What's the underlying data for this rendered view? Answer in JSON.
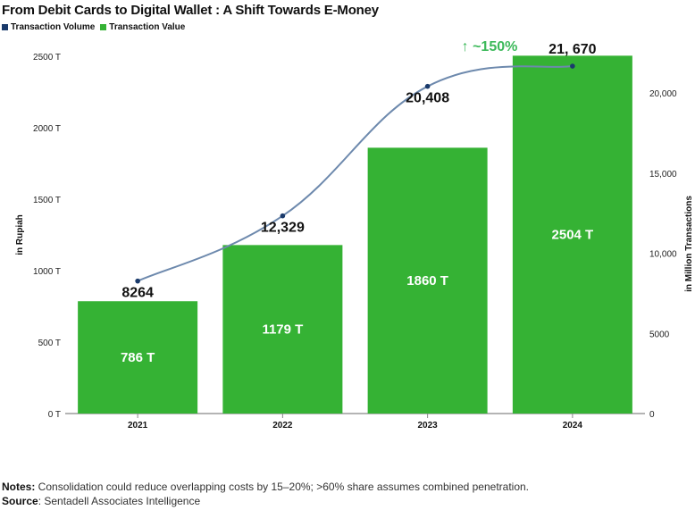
{
  "chart_data": {
    "type": "bar+line",
    "title": "From Debit Cards to Digital Wallet : A Shift Towards E-Money",
    "categories": [
      "2021",
      "2022",
      "2023",
      "2024"
    ],
    "series": [
      {
        "name": "Transaction Value",
        "type": "bar",
        "axis": "left",
        "color": "#35b234",
        "values": [
          786,
          1179,
          1860,
          2504
        ],
        "labels": [
          "786 T",
          "1179 T",
          "1860 T",
          "2504 T"
        ]
      },
      {
        "name": "Transaction Volume",
        "type": "line",
        "axis": "right",
        "color": "#1a3a6b",
        "line_color": "#6d89ad",
        "values": [
          8264,
          12329,
          20408,
          21670
        ],
        "labels": [
          "8264",
          "12,329",
          "20,408",
          "21, 670"
        ]
      }
    ],
    "y_left": {
      "label": "in Rupiah",
      "ylim": [
        0,
        2500
      ],
      "ticks": [
        0,
        500,
        1000,
        1500,
        2000,
        2500
      ],
      "tick_labels": [
        "0 T",
        "500 T",
        "1000 T",
        "1500 T",
        "2000 T",
        "2500 T"
      ]
    },
    "y_right": {
      "label": "in Million Transactions",
      "ylim": [
        0,
        22300
      ],
      "ticks": [
        0,
        5000,
        10000,
        15000,
        20000
      ],
      "tick_labels": [
        "0",
        "5000",
        "10,000",
        "15,000",
        "20,000"
      ]
    },
    "annotation": {
      "text": "↑ ~150%",
      "color": "#3cb95a"
    },
    "legend": [
      {
        "label": "Transaction Volume",
        "color": "#1a3a6b"
      },
      {
        "label": "Transaction Value",
        "color": "#35b234"
      }
    ],
    "legend_position": "top-left",
    "grid": false
  },
  "footer": {
    "notes_label": "Notes:",
    "notes_text": " Consolidation could reduce overlapping costs by 15–20%; >60% share assumes combined penetration.",
    "source_label": "Source",
    "source_text": ": Sentadell Associates Intelligence"
  }
}
